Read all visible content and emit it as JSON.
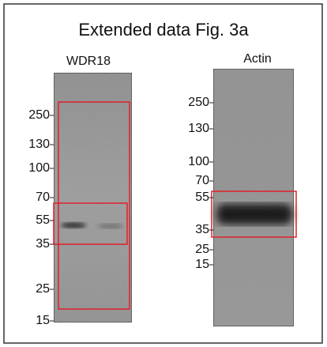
{
  "title": "Extended data Fig.  3a",
  "panels": [
    {
      "label": "WDR18",
      "markers": [
        "250",
        "130",
        "100",
        "70",
        "55",
        "35",
        "25",
        "15"
      ]
    },
    {
      "label": "Actin",
      "markers": [
        "250",
        "130",
        "100",
        "70",
        "55",
        "35",
        "25",
        "15"
      ]
    }
  ]
}
